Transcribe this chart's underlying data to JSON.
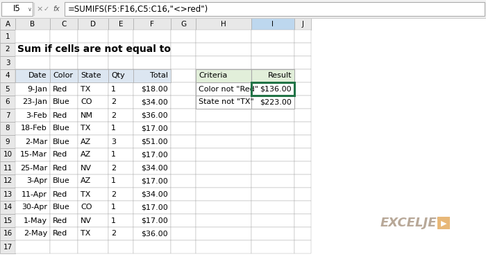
{
  "title": "Sum if cells are not equal to",
  "formula_bar_cell": "I5",
  "formula_bar_formula": "=SUMIFS(F5:F16,C5:C16,\"<>red\")",
  "col_headers": [
    "A",
    "B",
    "C",
    "D",
    "E",
    "F",
    "G",
    "H",
    "I",
    "J"
  ],
  "row_headers": [
    "1",
    "2",
    "3",
    "4",
    "5",
    "6",
    "7",
    "8",
    "9",
    "10",
    "11",
    "12",
    "13",
    "14",
    "15",
    "16",
    "17"
  ],
  "main_table_headers": [
    "Date",
    "Color",
    "State",
    "Qty",
    "Total"
  ],
  "main_table_data": [
    [
      "9-Jan",
      "Red",
      "TX",
      "1",
      "$18.00"
    ],
    [
      "23-Jan",
      "Blue",
      "CO",
      "2",
      "$34.00"
    ],
    [
      "3-Feb",
      "Red",
      "NM",
      "2",
      "$36.00"
    ],
    [
      "18-Feb",
      "Blue",
      "TX",
      "1",
      "$17.00"
    ],
    [
      "2-Mar",
      "Blue",
      "AZ",
      "3",
      "$51.00"
    ],
    [
      "15-Mar",
      "Red",
      "AZ",
      "1",
      "$17.00"
    ],
    [
      "25-Mar",
      "Red",
      "NV",
      "2",
      "$34.00"
    ],
    [
      "3-Apr",
      "Blue",
      "AZ",
      "1",
      "$17.00"
    ],
    [
      "11-Apr",
      "Red",
      "TX",
      "2",
      "$34.00"
    ],
    [
      "30-Apr",
      "Blue",
      "CO",
      "1",
      "$17.00"
    ],
    [
      "1-May",
      "Red",
      "NV",
      "1",
      "$17.00"
    ],
    [
      "2-May",
      "Red",
      "TX",
      "2",
      "$36.00"
    ]
  ],
  "side_table_headers": [
    "Criteria",
    "Result"
  ],
  "side_table_data": [
    [
      "Color not \"Red\"",
      "$136.00"
    ],
    [
      "State not \"TX\"",
      "$223.00"
    ]
  ],
  "bg_color": "#ffffff",
  "header_row_color": "#dce6f1",
  "header_col_color": "#e8e8e8",
  "cell_bg_color": "#ffffff",
  "grid_line_color": "#aaaaaa",
  "selected_col_color": "#bdd7ee",
  "selected_cell_border": "#217346",
  "side_header_color": "#e2efda",
  "exceljet_text_color": "#c0a060",
  "exceljet_arrow_color": "#d4a870",
  "title_fontsize": 10,
  "cell_fontsize": 8,
  "formula_fontsize": 8.5,
  "header_fontsize": 7.5
}
